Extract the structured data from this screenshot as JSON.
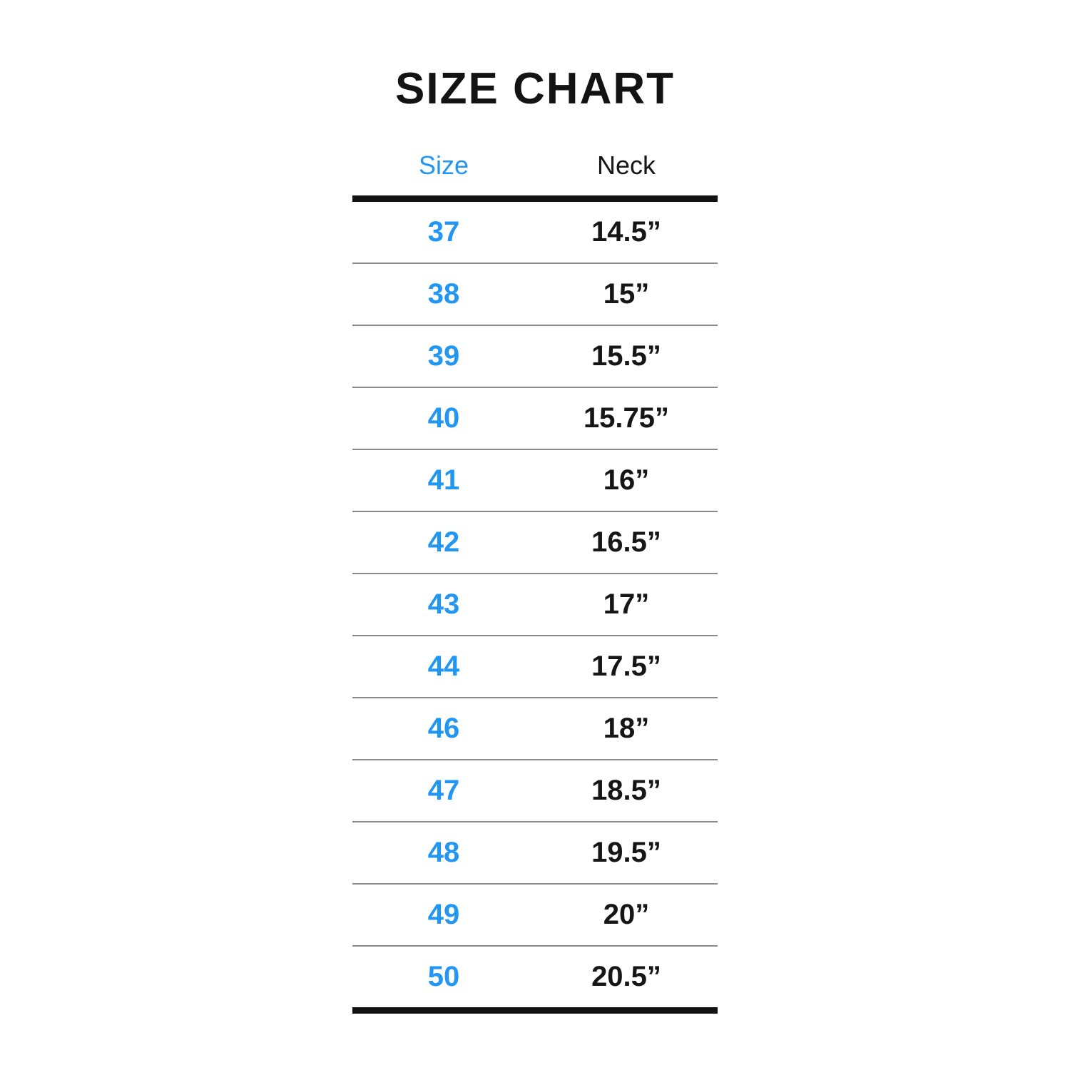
{
  "chart_data": {
    "type": "table",
    "title": "SIZE CHART",
    "columns": [
      "Size",
      "Neck"
    ],
    "headers": {
      "size": "Size",
      "neck": "Neck"
    },
    "rows": [
      {
        "size": "37",
        "neck": "14.5”"
      },
      {
        "size": "38",
        "neck": "15”"
      },
      {
        "size": "39",
        "neck": "15.5”"
      },
      {
        "size": "40",
        "neck": "15.75”"
      },
      {
        "size": "41",
        "neck": "16”"
      },
      {
        "size": "42",
        "neck": "16.5”"
      },
      {
        "size": "43",
        "neck": "17”"
      },
      {
        "size": "44",
        "neck": "17.5”"
      },
      {
        "size": "46",
        "neck": "18”"
      },
      {
        "size": "47",
        "neck": "18.5”"
      },
      {
        "size": "48",
        "neck": "19.5”"
      },
      {
        "size": "49",
        "neck": "20”"
      },
      {
        "size": "50",
        "neck": "20.5”"
      }
    ],
    "colors": {
      "size_column_blue": "#2196f3",
      "text_black": "#161616",
      "divider_gray": "#8a8a8a",
      "rule_black": "#131313"
    },
    "layout": {
      "legend": "none",
      "grid": "horizontal-row-dividers"
    }
  }
}
